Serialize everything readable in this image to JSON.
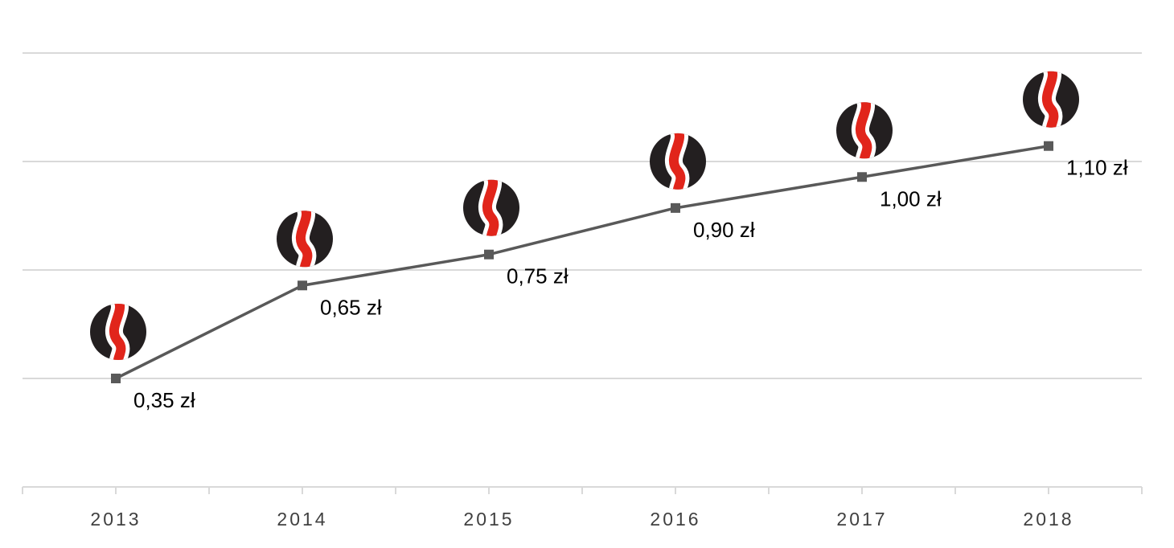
{
  "chart_data": {
    "type": "line",
    "categories": [
      "2013",
      "2014",
      "2015",
      "2016",
      "2017",
      "2018"
    ],
    "values": [
      0.35,
      0.65,
      0.75,
      0.9,
      1.0,
      1.1
    ],
    "data_labels": [
      "0,35 zł",
      "0,65 zł",
      "0,75 zł",
      "0,90 zł",
      "1,00 zł",
      "1,10 zł"
    ],
    "ylim": [
      0.0,
      1.4
    ],
    "y_gridline_step": 0.35,
    "grid": "horizontal",
    "y_tick_labels_visible": false,
    "legend": "none",
    "marker": "square",
    "marker_icon": "black-circle-red-wave-logo-icon",
    "colors": {
      "line": "#595959",
      "grid": "#d9d9d9",
      "logo_black": "#231f20",
      "logo_red": "#e1251b",
      "label": "#000000",
      "tick_label": "#404040"
    }
  }
}
